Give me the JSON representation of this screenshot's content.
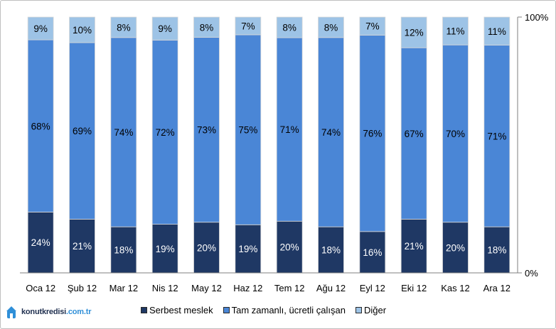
{
  "logo": {
    "brand": "konutkredisi",
    "domain": ".com.tr",
    "brand_color": "#1f2f4f",
    "domain_color": "#2f8fd8"
  },
  "colors": {
    "serbest": "#1f3864",
    "tam": "#4a86d6",
    "diger": "#9dc3e6"
  },
  "chart_data": {
    "type": "bar",
    "stacked": true,
    "percent": true,
    "categories": [
      "Oca 12",
      "Şub 12",
      "Mar 12",
      "Nis 12",
      "May 12",
      "Haz 12",
      "Tem 12",
      "Ağu 12",
      "Eyl 12",
      "Eki 12",
      "Kas 12",
      "Ara 12"
    ],
    "series": [
      {
        "name": "Serbest meslek",
        "values": [
          24,
          21,
          18,
          19,
          20,
          19,
          20,
          18,
          16,
          21,
          20,
          18
        ],
        "labels": [
          "24%",
          "21%",
          "18%",
          "19%",
          "20%",
          "19%",
          "20%",
          "18%",
          "16%",
          "21%",
          "20%",
          "18%"
        ]
      },
      {
        "name": "Tam zamanlı, ücretli çalışan",
        "values": [
          68,
          69,
          74,
          72,
          73,
          75,
          71,
          74,
          76,
          67,
          70,
          71
        ],
        "labels": [
          "68%",
          "69%",
          "74%",
          "72%",
          "73%",
          "75%",
          "71%",
          "74%",
          "76%",
          "67%",
          "70%",
          "71%"
        ]
      },
      {
        "name": "Diğer",
        "values": [
          9,
          10,
          8,
          9,
          8,
          7,
          8,
          8,
          7,
          12,
          11,
          11
        ],
        "labels": [
          "9%",
          "10%",
          "8%",
          "9%",
          "8%",
          "7%",
          "8%",
          "8%",
          "7%",
          "12%",
          "11%",
          "11%"
        ]
      }
    ],
    "y_ticks": [
      "100%",
      "0%"
    ],
    "ylim": [
      0,
      100
    ],
    "y_axis_position": "right",
    "grid": false,
    "legend_position": "bottom"
  }
}
